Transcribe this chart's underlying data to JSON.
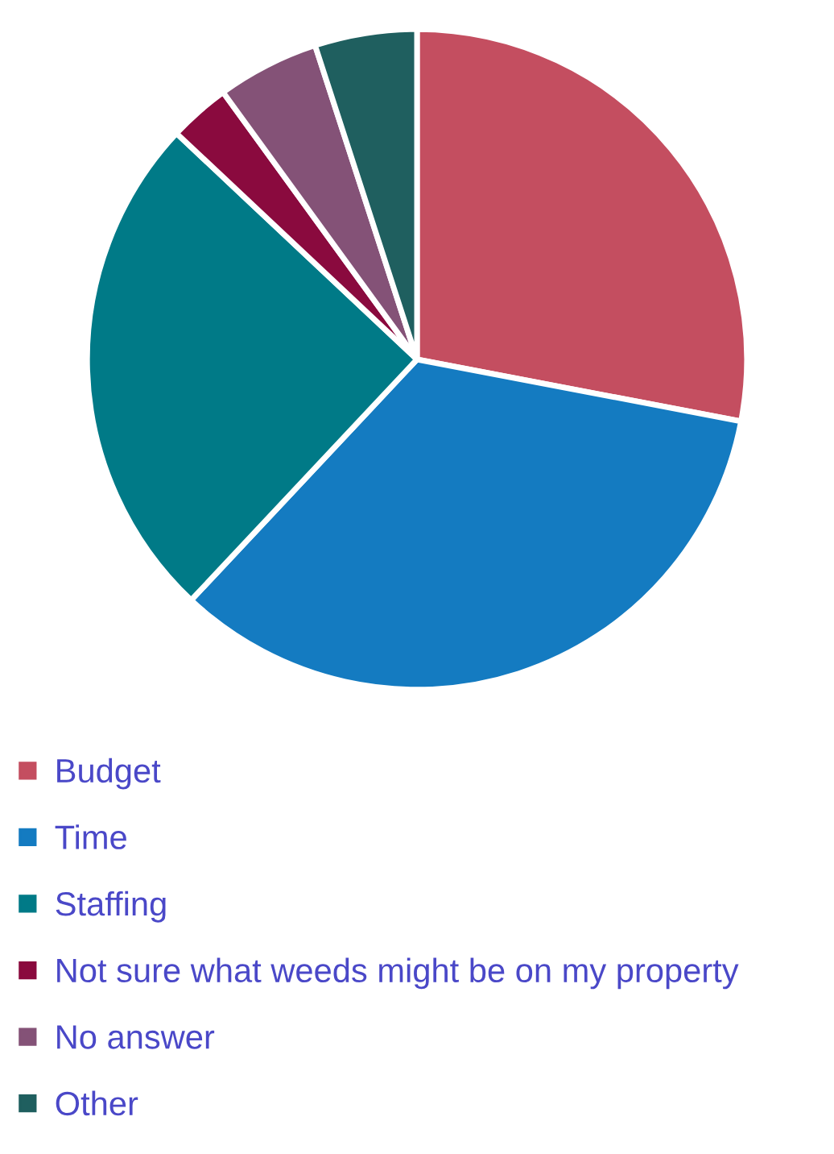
{
  "chart_data": {
    "type": "pie",
    "categories": [
      "Budget",
      "Time",
      "Staffing",
      "Not sure what weeds might be on my property",
      "No answer",
      "Other"
    ],
    "values": [
      28,
      34,
      25,
      3,
      5,
      5
    ],
    "colors": [
      "#c44e60",
      "#147bc1",
      "#007a87",
      "#8a0a3e",
      "#845277",
      "#1f5f5f"
    ],
    "legend": "bottom"
  }
}
